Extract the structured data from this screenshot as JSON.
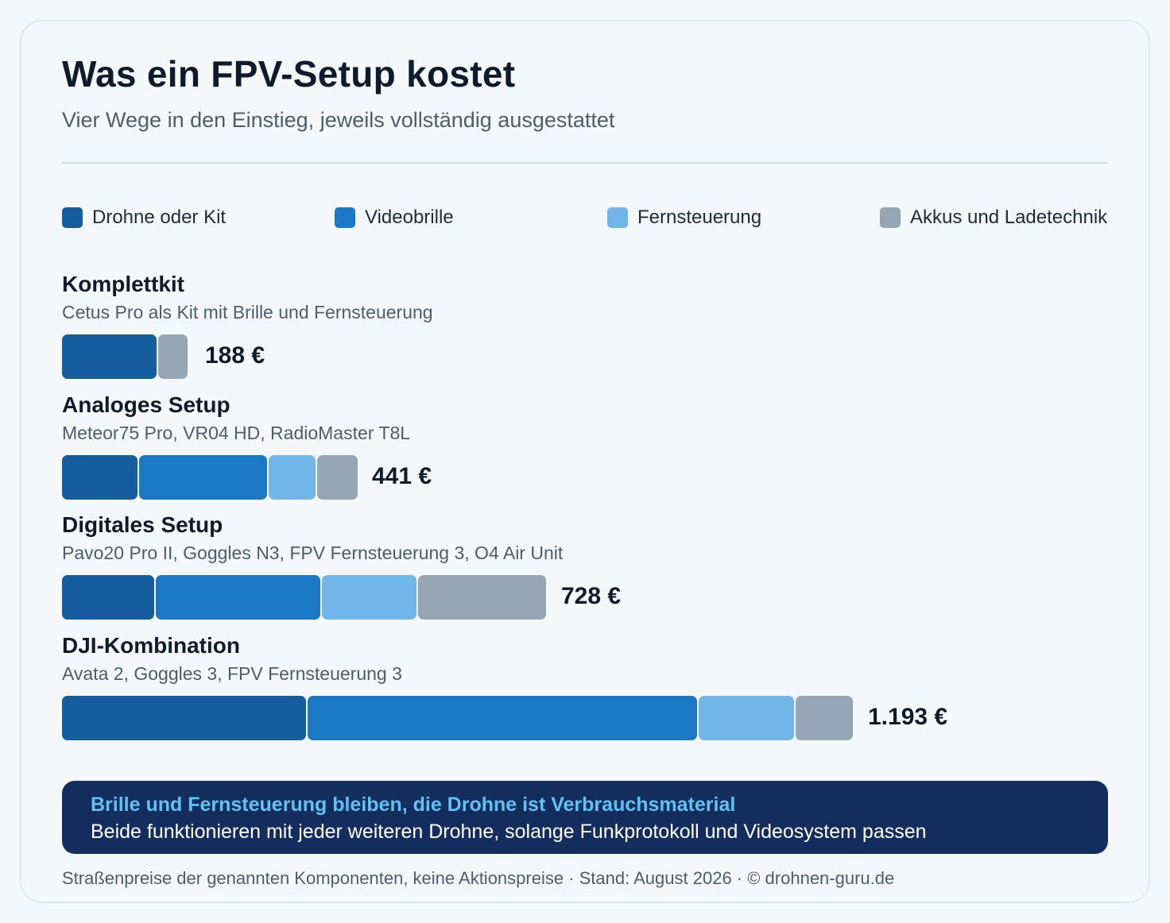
{
  "header": {
    "title": "Was ein FPV-Setup kostet",
    "subtitle": "Vier Wege in den Einstieg, jeweils vollständig ausgestattet"
  },
  "chart_data": {
    "type": "bar",
    "orientation": "horizontal",
    "stacked": true,
    "legend_position": "top",
    "colors": {
      "drohne": "#155d9c",
      "brille": "#1b78c4",
      "fernsteuerung": "#70b6e8",
      "akkus": "#97a6b5"
    },
    "series": [
      {
        "key": "drohne",
        "name": "Drohne oder Kit"
      },
      {
        "key": "brille",
        "name": "Videobrille"
      },
      {
        "key": "fernsteuerung",
        "name": "Fernsteuerung"
      },
      {
        "key": "akkus",
        "name": "Akkus und Ladetechnik"
      }
    ],
    "categories": [
      {
        "name": "Komplettkit",
        "description": "Cetus Pro als Kit mit Brille und Fernsteuerung",
        "total_label": "188 €",
        "total": 188,
        "values": {
          "drohne": 143,
          "brille": 0,
          "fernsteuerung": 0,
          "akkus": 45
        }
      },
      {
        "name": "Analoges Setup",
        "description": "Meteor75 Pro, VR04 HD, RadioMaster T8L",
        "total_label": "441 €",
        "total": 441,
        "values": {
          "drohne": 115,
          "brille": 194,
          "fernsteuerung": 71,
          "akkus": 61
        }
      },
      {
        "name": "Digitales Setup",
        "description": "Pavo20 Pro II, Goggles N3, FPV Fernsteuerung 3, O4 Air Unit",
        "total_label": "728 €",
        "total": 728,
        "values": {
          "drohne": 140,
          "brille": 250,
          "fernsteuerung": 144,
          "akkus": 194
        }
      },
      {
        "name": "DJI-Kombination",
        "description": "Avata 2, Goggles 3, FPV Fernsteuerung 3",
        "total_label": "1.193 €",
        "total": 1193,
        "values": {
          "drohne": 370,
          "brille": 591,
          "fernsteuerung": 145,
          "akkus": 87
        }
      }
    ]
  },
  "callout": {
    "headline": "Brille und Fernsteuerung bleiben, die Drohne ist Verbrauchsmaterial",
    "body": "Beide funktionieren mit jeder weiteren Drohne, solange Funkprotokoll und Videosystem passen"
  },
  "footer": {
    "text": "Straßenpreise der genannten Komponenten, keine Aktionspreise · Stand: August 2026 · © drohnen-guru.de"
  }
}
